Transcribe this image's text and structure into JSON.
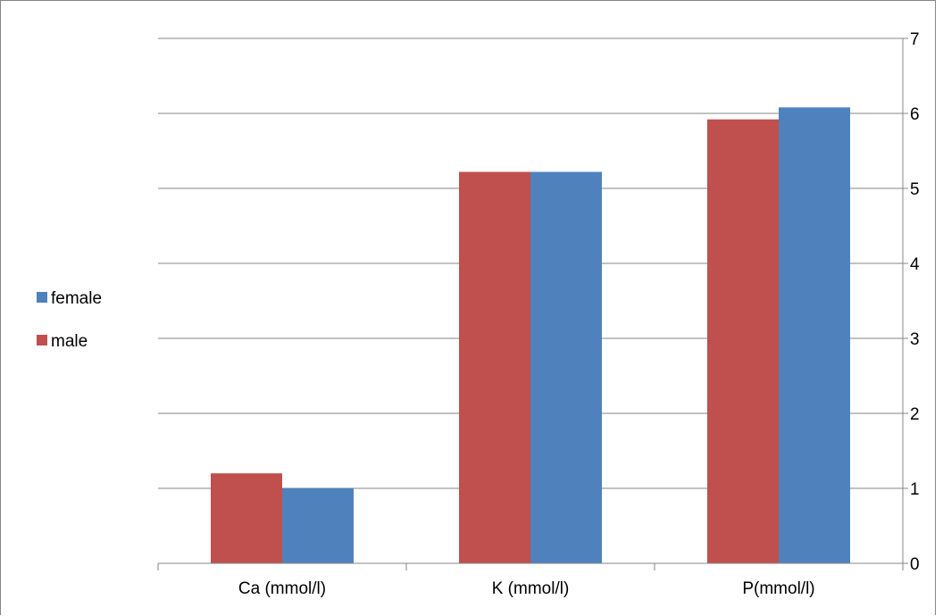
{
  "chart_data": {
    "type": "bar",
    "categories": [
      "Ca (mmol/l)",
      "K (mmol/l)",
      "P(mmol/l)"
    ],
    "series": [
      {
        "name": "male",
        "color": "#C0504D",
        "values": [
          1.2,
          5.22,
          5.92
        ]
      },
      {
        "name": "female",
        "color": "#4F81BD",
        "values": [
          1.0,
          5.22,
          6.08
        ]
      }
    ],
    "ylim": [
      0,
      7
    ],
    "yticks": [
      0,
      1,
      2,
      3,
      4,
      5,
      6,
      7
    ],
    "y_axis_side": "right",
    "grid": true,
    "legend": {
      "placement": "left",
      "order": [
        "female",
        "male"
      ]
    }
  }
}
